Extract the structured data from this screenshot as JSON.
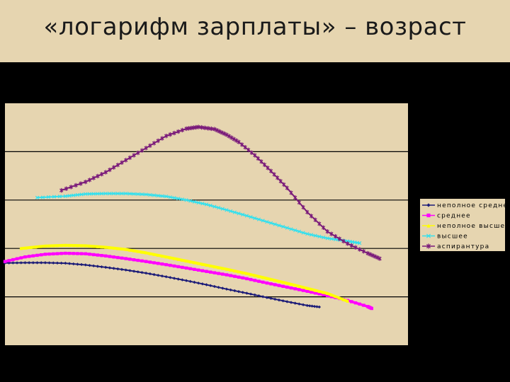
{
  "slide": {
    "title": "«логарифм зарплаты» – возраст"
  },
  "colors": {
    "background": "#000000",
    "title_bar": "#e6d5b0",
    "plot_area": "#e6d5b0",
    "legend_area": "#e6d5b0"
  },
  "chart_data": {
    "type": "line",
    "title": "",
    "xlabel": "",
    "ylabel": "",
    "xlim": [
      0,
      100
    ],
    "ylim": [
      0,
      100
    ],
    "grid": "horizontal",
    "gridlines_y": [
      80,
      60,
      40,
      20
    ],
    "legend_position": "right",
    "series": [
      {
        "name": "неполное среднее",
        "color": "#1c1c78",
        "marker": "diamond",
        "x": [
          0,
          5,
          10,
          15,
          20,
          25,
          30,
          35,
          40,
          45,
          50,
          55,
          60,
          65,
          70,
          75,
          78
        ],
        "y": [
          34.0,
          34.1,
          34.1,
          33.9,
          33.2,
          32.2,
          31.1,
          29.8,
          28.3,
          26.7,
          25.0,
          23.2,
          21.5,
          19.7,
          18.0,
          16.4,
          15.8
        ]
      },
      {
        "name": "среднее",
        "color": "#ff00ff",
        "marker": "square",
        "x": [
          0,
          5,
          10,
          15,
          20,
          25,
          30,
          35,
          40,
          45,
          50,
          55,
          60,
          65,
          70,
          75,
          80,
          85,
          90,
          91
        ],
        "y": [
          34.6,
          36.5,
          37.6,
          38.0,
          37.8,
          36.9,
          35.8,
          34.6,
          33.3,
          31.9,
          30.5,
          29.1,
          27.5,
          25.7,
          24.0,
          22.3,
          20.5,
          18.5,
          16.0,
          15.2
        ]
      },
      {
        "name": "неполное высшее",
        "color": "#ffff00",
        "marker": "triangle",
        "x": [
          4,
          10,
          15,
          20,
          25,
          30,
          35,
          40,
          45,
          50,
          55,
          60,
          65,
          70,
          75,
          80,
          85
        ],
        "y": [
          40.0,
          41.0,
          41.3,
          41.1,
          40.5,
          39.6,
          38.2,
          36.5,
          34.8,
          33.1,
          31.4,
          29.6,
          27.6,
          25.6,
          23.5,
          21.4,
          18.2
        ]
      },
      {
        "name": "высшее",
        "color": "#33e0ee",
        "marker": "x",
        "x": [
          8,
          15,
          20,
          25,
          30,
          35,
          40,
          45,
          50,
          55,
          60,
          65,
          70,
          75,
          80,
          85,
          88
        ],
        "y": [
          61.0,
          61.6,
          62.5,
          62.7,
          62.7,
          62.3,
          61.5,
          60.0,
          58.2,
          55.9,
          53.5,
          51.0,
          48.5,
          46.0,
          44.2,
          43.0,
          42.2
        ]
      },
      {
        "name": "аспирантура",
        "color": "#7a1a7a",
        "marker": "star",
        "x": [
          14,
          20,
          25,
          30,
          35,
          40,
          45,
          48,
          52,
          55,
          58,
          62,
          66,
          70,
          75,
          80,
          85,
          90,
          93
        ],
        "y": [
          64.0,
          67.5,
          71.5,
          76.5,
          81.5,
          86.5,
          89.5,
          90.2,
          89.3,
          87.0,
          84.0,
          78.5,
          72.0,
          65.0,
          55.0,
          47.0,
          42.0,
          38.0,
          35.8
        ]
      }
    ]
  }
}
